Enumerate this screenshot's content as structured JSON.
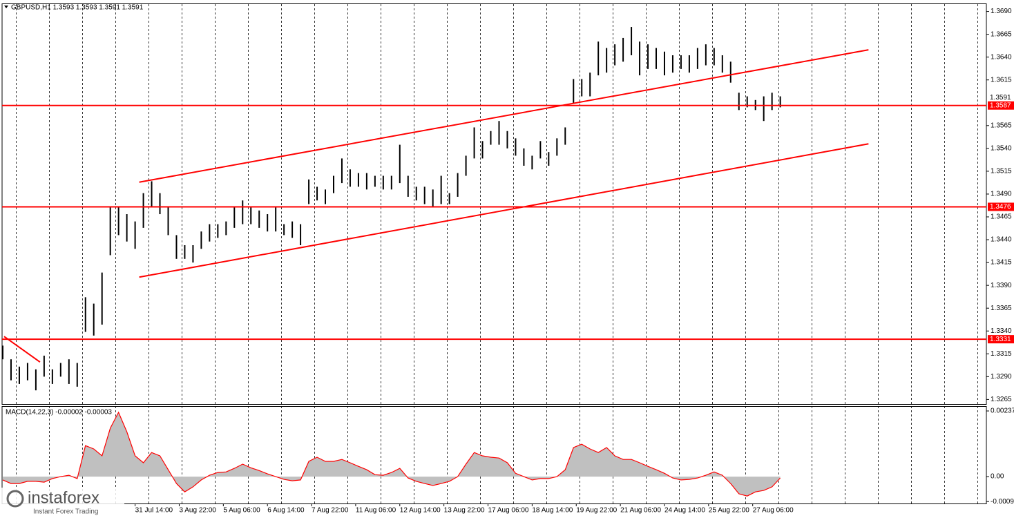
{
  "chart_data": [
    {
      "type": "ohlc",
      "title": "GBPUSD,H1  1.3593 1.3593 1.3591 1.3591",
      "color": "#000000",
      "xlim": [
        -0.5,
        713.5
      ],
      "ylim": [
        1.326,
        1.3698
      ],
      "yticks": [
        {
          "value": 1.369,
          "label": "1.3690"
        },
        1.3665,
        {
          "value": 1.364,
          "label": "1.3640"
        },
        1.3615,
        1.3565,
        {
          "value": 1.354,
          "label": "1.3540"
        },
        1.3515,
        {
          "value": 1.349,
          "label": "1.3490"
        },
        1.3465,
        {
          "value": 1.344,
          "label": "1.3440"
        },
        1.3415,
        {
          "value": 1.339,
          "label": "1.3390"
        },
        1.3365,
        {
          "value": 1.334,
          "label": "1.3340"
        },
        1.3315,
        {
          "value": 1.329,
          "label": "1.3290"
        },
        1.3265
      ],
      "x": [
        0,
        6,
        12,
        18,
        24,
        30,
        36,
        42,
        48,
        54,
        60,
        66,
        72,
        78,
        84,
        90,
        96,
        102,
        108,
        114,
        120,
        126,
        132,
        138,
        144,
        150,
        156,
        162,
        168,
        174,
        180,
        186,
        192,
        198,
        204,
        210,
        216,
        222,
        228,
        234,
        240,
        246,
        252,
        258,
        264,
        270,
        276,
        282,
        288,
        294,
        300,
        306,
        312,
        318,
        324,
        330,
        336,
        342,
        348,
        354,
        360,
        366,
        372,
        378,
        384,
        390,
        396,
        402,
        408,
        414,
        420,
        426,
        432,
        438,
        444,
        450,
        456,
        462,
        468,
        474,
        480,
        486,
        492,
        498,
        504,
        510,
        516,
        522,
        528,
        534,
        540,
        546,
        552,
        558,
        564
      ],
      "high": [
        1.3324,
        1.3309,
        1.3301,
        1.3305,
        1.3298,
        1.3313,
        1.3298,
        1.3305,
        1.3309,
        1.3305,
        1.3377,
        1.337,
        1.3404,
        1.3476,
        1.3476,
        1.3468,
        1.346,
        1.3491,
        1.3504,
        1.3491,
        1.3476,
        1.3445,
        1.3434,
        1.3434,
        1.3449,
        1.3457,
        1.3457,
        1.346,
        1.3476,
        1.3483,
        1.3476,
        1.3472,
        1.3468,
        1.3476,
        1.3457,
        1.346,
        1.3457,
        1.3506,
        1.3498,
        1.3495,
        1.351,
        1.3529,
        1.3517,
        1.3513,
        1.3513,
        1.351,
        1.351,
        1.351,
        1.3544,
        1.351,
        1.3498,
        1.3498,
        1.3495,
        1.351,
        1.3491,
        1.3513,
        1.3532,
        1.3563,
        1.3548,
        1.3559,
        1.357,
        1.3559,
        1.3551,
        1.354,
        1.3532,
        1.3548,
        1.3536,
        1.3551,
        1.3563,
        1.3616,
        1.3616,
        1.3623,
        1.3657,
        1.365,
        1.3654,
        1.3661,
        1.3673,
        1.3657,
        1.3654,
        1.365,
        1.3646,
        1.3642,
        1.3642,
        1.3642,
        1.365,
        1.3654,
        1.365,
        1.3642,
        1.3635,
        1.3601,
        1.3597,
        1.3593,
        1.3597,
        1.3601,
        1.3597
      ],
      "low": [
        1.3309,
        1.3286,
        1.3282,
        1.3286,
        1.3275,
        1.329,
        1.3282,
        1.329,
        1.3282,
        1.3279,
        1.3339,
        1.3335,
        1.3347,
        1.3423,
        1.3445,
        1.3438,
        1.343,
        1.3453,
        1.3476,
        1.3468,
        1.3445,
        1.3419,
        1.3419,
        1.3415,
        1.343,
        1.3438,
        1.3442,
        1.3445,
        1.3453,
        1.3457,
        1.3457,
        1.3453,
        1.3449,
        1.3449,
        1.3445,
        1.3442,
        1.3434,
        1.3479,
        1.3483,
        1.3479,
        1.3491,
        1.3502,
        1.3498,
        1.3498,
        1.3495,
        1.3498,
        1.3495,
        1.3495,
        1.3502,
        1.3487,
        1.3483,
        1.3479,
        1.3476,
        1.3479,
        1.3479,
        1.3487,
        1.351,
        1.3529,
        1.3529,
        1.3544,
        1.3544,
        1.354,
        1.3532,
        1.3521,
        1.3517,
        1.3529,
        1.3521,
        1.3532,
        1.3544,
        1.3589,
        1.3597,
        1.3597,
        1.362,
        1.3623,
        1.3631,
        1.3635,
        1.3642,
        1.362,
        1.3627,
        1.3627,
        1.362,
        1.3623,
        1.3627,
        1.3623,
        1.3627,
        1.3631,
        1.3631,
        1.3623,
        1.3612,
        1.3582,
        1.3585,
        1.3582,
        1.357,
        1.3582,
        1.3585
      ],
      "levels": [
        {
          "value": 1.3587,
          "color": "#ff0000"
        },
        {
          "value": 1.3476,
          "color": "#ff0000"
        },
        {
          "value": 1.3331,
          "color": "#ff0000"
        }
      ],
      "trendlines": [
        {
          "x": [
            99,
            628
          ],
          "y": [
            1.3503,
            1.3648
          ],
          "color": "#ff0000"
        },
        {
          "x": [
            99,
            628
          ],
          "y": [
            1.3399,
            1.3545
          ],
          "color": "#ff0000"
        },
        {
          "x": [
            1,
            27
          ],
          "y": [
            1.3334,
            1.3306
          ],
          "color": "#ff0000"
        }
      ],
      "last_price": 1.3591
    },
    {
      "type": "area",
      "title": "MACD(14,22,3) -0.00002 -0.00003",
      "fill": "#c0c0c0",
      "color": "#ff0000",
      "xlim": [
        -0.5,
        713.5
      ],
      "ylim": [
        -0.00097,
        0.00252
      ],
      "yticks": [
        0.00237,
        {
          "value": 0,
          "label": "0.00"
        },
        -0.0009
      ],
      "xticks": [
        {
          "value": 96,
          "label": "31 Jul 14:00"
        },
        {
          "value": 128,
          "label": "3 Aug 22:00"
        },
        {
          "value": 160,
          "label": "5 Aug 06:00"
        },
        {
          "value": 192,
          "label": "6 Aug 14:00"
        },
        {
          "value": 224,
          "label": "7 Aug 22:00"
        },
        {
          "value": 256,
          "label": "11 Aug 06:00"
        },
        {
          "value": 288,
          "label": "12 Aug 14:00"
        },
        {
          "value": 320,
          "label": "13 Aug 22:00"
        },
        {
          "value": 352,
          "label": "17 Aug 06:00"
        },
        {
          "value": 384,
          "label": "18 Aug 14:00"
        },
        {
          "value": 416,
          "label": "19 Aug 22:00"
        },
        {
          "value": 448,
          "label": "21 Aug 06:00"
        },
        {
          "value": 480,
          "label": "24 Aug 14:00"
        },
        {
          "value": 512,
          "label": "25 Aug 22:00"
        },
        {
          "value": 544,
          "label": "27 Aug 06:00"
        }
      ],
      "x": [
        0,
        6,
        12,
        18,
        24,
        30,
        36,
        42,
        48,
        54,
        60,
        66,
        72,
        78,
        84,
        90,
        96,
        102,
        108,
        114,
        120,
        126,
        132,
        138,
        144,
        150,
        156,
        162,
        168,
        174,
        180,
        186,
        192,
        198,
        204,
        210,
        216,
        222,
        228,
        234,
        240,
        246,
        252,
        258,
        264,
        270,
        276,
        282,
        288,
        294,
        300,
        306,
        312,
        318,
        324,
        330,
        336,
        342,
        348,
        354,
        360,
        366,
        372,
        378,
        384,
        390,
        396,
        402,
        408,
        414,
        420,
        426,
        432,
        438,
        444,
        450,
        456,
        462,
        468,
        474,
        480,
        486,
        492,
        498,
        504,
        510,
        516,
        522,
        528,
        534,
        540,
        546,
        552,
        558,
        564
      ],
      "values": [
        -0.00012,
        -0.00025,
        -0.00025,
        -0.00017,
        -0.00017,
        -0.0002,
        -7e-05,
        0,
        5e-05,
        -7e-05,
        0.00112,
        0.001,
        0.00075,
        0.00175,
        0.00232,
        0.00162,
        0.00075,
        0.0005,
        0.00087,
        0.00075,
        0.00025,
        -0.00025,
        -0.00055,
        -0.00037,
        -0.00012,
        5e-05,
        0.00015,
        0.00017,
        0.0003,
        0.00045,
        0.00032,
        0.00022,
        0.0001,
        0,
        -0.0001,
        -0.00015,
        -0.00012,
        0.00055,
        0.0007,
        0.00055,
        0.00055,
        0.00062,
        0.0005,
        0.00037,
        0.00025,
        7e-05,
        5e-05,
        0.00015,
        0.0003,
        -5e-05,
        -0.00017,
        -0.00025,
        -0.00032,
        -0.00025,
        -0.00017,
        0,
        0.00045,
        0.00087,
        0.00075,
        0.0007,
        0.00067,
        0.0005,
        0.00012,
        0,
        -0.00012,
        -7e-05,
        -7e-05,
        0,
        0.00025,
        0.00105,
        0.00117,
        0.001,
        0.00087,
        0.00105,
        0.00075,
        0.00062,
        0.00062,
        0.0005,
        0.00037,
        0.00025,
        0.00012,
        -5e-05,
        -0.00012,
        -0.0001,
        -5e-05,
        5e-05,
        0.00017,
        5e-05,
        -0.00025,
        -0.00062,
        -0.0007,
        -0.00055,
        -0.0005,
        -0.00037,
        -5e-05
      ]
    }
  ],
  "logo": {
    "name": "instaforex",
    "tagline": "Instant Forex Trading"
  }
}
